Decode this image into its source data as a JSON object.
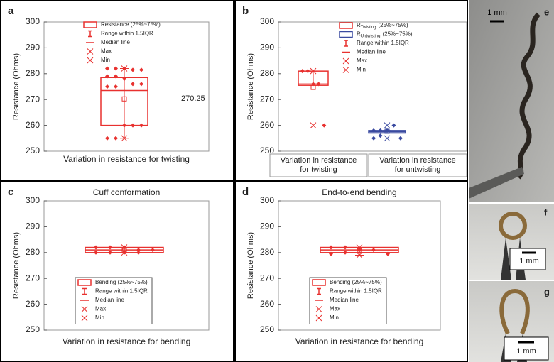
{
  "chart_data": [
    {
      "type": "box",
      "panel": "a",
      "y_label": "Resistance (Ohms)",
      "x_label": "Variation in resistance for twisting",
      "ylim": [
        250,
        300
      ],
      "yticks": [
        250,
        260,
        270,
        280,
        290,
        300
      ],
      "annotation": "270.25",
      "legend_items": [
        "Range within 1.5IQR",
        "Median line",
        "Max",
        "Min"
      ],
      "series": [
        {
          "name": "Resistance (25%~75%)",
          "color": "#e8312f",
          "q1": 260,
          "median": 273.5,
          "q3": 278.5,
          "whisker_low": 255,
          "whisker_high": 282,
          "mean": 270.25,
          "max": 282,
          "min": 255,
          "points": [
            282,
            282,
            282,
            281.5,
            281.5,
            279,
            279,
            278,
            276,
            276,
            275,
            275,
            260,
            260,
            260,
            255,
            255
          ]
        }
      ]
    },
    {
      "type": "box",
      "panel": "b",
      "y_label": "Resistance (Ohms)",
      "ylim": [
        250,
        300
      ],
      "yticks": [
        250,
        260,
        270,
        280,
        290,
        300
      ],
      "categories": [
        [
          "Variation in resistance",
          "for twisting"
        ],
        [
          "Variation in resistance",
          "for untwisting"
        ]
      ],
      "legend_items": [
        "Range within 1.5IQR",
        "Median line",
        "Max",
        "Min"
      ],
      "series": [
        {
          "name": "R",
          "name_sub": "Twisting",
          "name_suffix": "(25%~75%)",
          "color": "#e8312f",
          "q1": 275.5,
          "median": 276,
          "q3": 281,
          "whisker_low": 275.5,
          "whisker_high": 281,
          "mean": 274.7,
          "max": 281,
          "min": 260,
          "points": [
            281,
            281,
            276,
            276,
            260
          ]
        },
        {
          "name": "R",
          "name_sub": "Untwisting",
          "name_suffix": "(25%~75%)",
          "color": "#3a4aa0",
          "q1": 257,
          "median": 257.5,
          "q3": 258,
          "whisker_low": 257,
          "whisker_high": 258,
          "mean": 257.7,
          "max": 260,
          "min": 255,
          "points": [
            258,
            258,
            258,
            260,
            255,
            255,
            256
          ]
        }
      ]
    },
    {
      "type": "box",
      "panel": "c",
      "title": "Cuff conformation",
      "y_label": "Resistance (Ohms)",
      "x_label": "Variation in resistance for bending",
      "ylim": [
        250,
        300
      ],
      "yticks": [
        250,
        260,
        270,
        280,
        290,
        300
      ],
      "legend_items": [
        "Range within 1.5IQR",
        "Median line",
        "Max",
        "Min"
      ],
      "series": [
        {
          "name": "Bending (25%~75%)",
          "color": "#e8312f",
          "q1": 280,
          "median": 281,
          "q3": 282,
          "whisker_low": 280,
          "whisker_high": 282,
          "mean": 281,
          "max": 282,
          "min": 280,
          "points": [
            282,
            282,
            282,
            281,
            281,
            280,
            280,
            280,
            280
          ]
        }
      ]
    },
    {
      "type": "box",
      "panel": "d",
      "title": "End-to-end bending",
      "y_label": "Resistance (Ohms)",
      "x_label": "Variation in resistance for bending",
      "ylim": [
        250,
        300
      ],
      "yticks": [
        250,
        260,
        270,
        280,
        290,
        300
      ],
      "legend_items": [
        "Range within 1.5IQR",
        "Median line",
        "Max",
        "Min"
      ],
      "series": [
        {
          "name": "Bending (25%~75%)",
          "color": "#e8312f",
          "q1": 280,
          "median": 281,
          "q3": 282,
          "whisker_low": 279,
          "whisker_high": 282,
          "mean": 281,
          "max": 282,
          "min": 279,
          "points": [
            282,
            282,
            281,
            281,
            279.5,
            279.5,
            280
          ]
        }
      ]
    }
  ],
  "images": [
    {
      "label": "e",
      "scale_bar": "1 mm"
    },
    {
      "label": "f",
      "scale_bar": "1 mm"
    },
    {
      "label": "g",
      "scale_bar": "1 mm"
    }
  ]
}
